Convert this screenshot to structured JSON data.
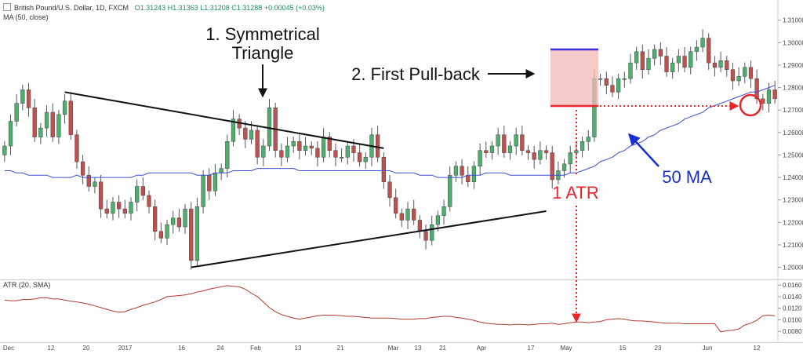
{
  "header": {
    "symbol_line": "British Pound/U.S. Dollar, 1D, FXCM",
    "open": "O1.31243",
    "high": "H1.31363",
    "low": "L1.31208",
    "close": "C1.31288",
    "change": "+0.00045 (+0.03%)",
    "ma_label": "MA (50, close)",
    "atr_label": "ATR (20, SMA)"
  },
  "annotations": {
    "triangle_line1": "1. Symmetrical",
    "triangle_line2": "Triangle",
    "pullback": "2. First Pull-back",
    "atr": "1 ATR",
    "ma": "50 MA"
  },
  "colors": {
    "up": "#4caf6e",
    "down": "#c0504d",
    "ma": "#3b4fd6",
    "atr": "#b03a2e",
    "annotation_red": "#e8262b",
    "annotation_blue": "#1a2fd0",
    "pullback_zone": "#f4b8b8",
    "pullback_top": "#3a2fd6"
  },
  "chart_data": [
    {
      "type": "candlestick",
      "title": "British Pound/U.S. Dollar, 1D, FXCM",
      "x_tick_labels": [
        "Dec",
        "12",
        "20",
        "2017",
        "16",
        "24",
        "Feb",
        "13",
        "21",
        "Mar",
        "13",
        "21",
        "Apr",
        "17",
        "May",
        "15",
        "23",
        "Jun",
        "12"
      ],
      "y_tick_labels": [
        "1.20000",
        "1.21000",
        "1.22000",
        "1.23000",
        "1.24000",
        "1.25000",
        "1.26000",
        "1.27000",
        "1.28000",
        "1.29000",
        "1.30000",
        "1.31000"
      ],
      "ylim": [
        1.196,
        1.312
      ],
      "price_close": [
        1.254,
        1.265,
        1.273,
        1.279,
        1.271,
        1.258,
        1.262,
        1.269,
        1.258,
        1.268,
        1.274,
        1.259,
        1.247,
        1.241,
        1.236,
        1.238,
        1.226,
        1.224,
        1.229,
        1.226,
        1.224,
        1.229,
        1.236,
        1.232,
        1.227,
        1.216,
        1.213,
        1.219,
        1.222,
        1.218,
        1.226,
        1.203,
        1.227,
        1.241,
        1.234,
        1.242,
        1.244,
        1.256,
        1.266,
        1.262,
        1.257,
        1.261,
        1.249,
        1.254,
        1.271,
        1.252,
        1.249,
        1.254,
        1.256,
        1.252,
        1.254,
        1.253,
        1.249,
        1.258,
        1.252,
        1.249,
        1.249,
        1.254,
        1.251,
        1.247,
        1.249,
        1.259,
        1.249,
        1.238,
        1.231,
        1.224,
        1.221,
        1.226,
        1.221,
        1.216,
        1.212,
        1.219,
        1.223,
        1.227,
        1.241,
        1.245,
        1.241,
        1.238,
        1.245,
        1.252,
        1.251,
        1.254,
        1.259,
        1.251,
        1.254,
        1.259,
        1.252,
        1.251,
        1.248,
        1.252,
        1.251,
        1.239,
        1.243,
        1.246,
        1.251,
        1.252,
        1.256,
        1.258,
        1.284,
        1.284,
        1.281,
        1.278,
        1.284,
        1.284,
        1.291,
        1.296,
        1.288,
        1.293,
        1.297,
        1.294,
        1.287,
        1.291,
        1.294,
        1.289,
        1.296,
        1.298,
        1.302,
        1.291,
        1.289,
        1.292,
        1.288,
        1.283,
        1.285,
        1.289,
        1.284,
        1.275,
        1.273,
        1.279,
        1.275
      ],
      "ma50": [
        1.243,
        1.243,
        1.242,
        1.242,
        1.241,
        1.241,
        1.241,
        1.241,
        1.24,
        1.24,
        1.24,
        1.24,
        1.241,
        1.24,
        1.24,
        1.24,
        1.24,
        1.24,
        1.24,
        1.24,
        1.24,
        1.24,
        1.241,
        1.241,
        1.242,
        1.242,
        1.242,
        1.242,
        1.242,
        1.242,
        1.242,
        1.242,
        1.241,
        1.241,
        1.241,
        1.242,
        1.242,
        1.242,
        1.243,
        1.243,
        1.243,
        1.243,
        1.244,
        1.244,
        1.244,
        1.244,
        1.244,
        1.244,
        1.244,
        1.243,
        1.243,
        1.243,
        1.243,
        1.243,
        1.243,
        1.243,
        1.243,
        1.243,
        1.243,
        1.243,
        1.243,
        1.243,
        1.243,
        1.243,
        1.243,
        1.242,
        1.242,
        1.242,
        1.242,
        1.241,
        1.241,
        1.241,
        1.24,
        1.24,
        1.24,
        1.24,
        1.24,
        1.241,
        1.241,
        1.241,
        1.242,
        1.242,
        1.242,
        1.242,
        1.241,
        1.241,
        1.241,
        1.241,
        1.241,
        1.241,
        1.241,
        1.241,
        1.241,
        1.241,
        1.242,
        1.242,
        1.243,
        1.244,
        1.245,
        1.247,
        1.248,
        1.249,
        1.251,
        1.252,
        1.254,
        1.255,
        1.256,
        1.258,
        1.259,
        1.261,
        1.262,
        1.263,
        1.264,
        1.266,
        1.267,
        1.268,
        1.269,
        1.271,
        1.272,
        1.273,
        1.274,
        1.275,
        1.276,
        1.277,
        1.278,
        1.278,
        1.279,
        1.28,
        1.281
      ],
      "drawings": [
        {
          "kind": "trendline",
          "from": [
            10,
            1.278
          ],
          "to": [
            63,
            1.253
          ]
        },
        {
          "kind": "trendline",
          "from": [
            31,
            1.2
          ],
          "to": [
            90,
            1.225
          ]
        }
      ]
    },
    {
      "type": "line",
      "title": "ATR (20, SMA)",
      "y_tick_labels": [
        "0.0080",
        "0.0100",
        "0.0120",
        "0.0140",
        "0.0160"
      ],
      "ylim": [
        0.0072,
        0.0163
      ],
      "atr": [
        0.0134,
        0.0133,
        0.0133,
        0.0135,
        0.0135,
        0.0136,
        0.0138,
        0.0138,
        0.0136,
        0.0136,
        0.0134,
        0.0132,
        0.0131,
        0.0129,
        0.0127,
        0.0124,
        0.0121,
        0.0118,
        0.0115,
        0.0113,
        0.0114,
        0.0118,
        0.0121,
        0.0125,
        0.0128,
        0.0131,
        0.0135,
        0.014,
        0.0141,
        0.0142,
        0.0143,
        0.0145,
        0.0148,
        0.015,
        0.0153,
        0.0155,
        0.0157,
        0.0159,
        0.0158,
        0.0157,
        0.0153,
        0.0146,
        0.014,
        0.0131,
        0.0121,
        0.0114,
        0.0109,
        0.0106,
        0.0103,
        0.0101,
        0.0103,
        0.0105,
        0.0107,
        0.0108,
        0.0108,
        0.0108,
        0.0107,
        0.0106,
        0.0106,
        0.0105,
        0.0104,
        0.0103,
        0.0103,
        0.0103,
        0.0103,
        0.0102,
        0.0101,
        0.0101,
        0.0101,
        0.0102,
        0.0102,
        0.0104,
        0.0105,
        0.0106,
        0.0106,
        0.0104,
        0.0103,
        0.0101,
        0.0099,
        0.0096,
        0.0094,
        0.0093,
        0.0092,
        0.0092,
        0.0091,
        0.0092,
        0.0092,
        0.0091,
        0.0092,
        0.0093,
        0.0093,
        0.0094,
        0.0092,
        0.0093,
        0.0095,
        0.0096,
        0.0096,
        0.0095,
        0.0096,
        0.0097,
        0.01,
        0.0101,
        0.0102,
        0.0101,
        0.0099,
        0.0098,
        0.0098,
        0.0097,
        0.0096,
        0.0095,
        0.0094,
        0.0094,
        0.0094,
        0.0093,
        0.0093,
        0.0093,
        0.0093,
        0.0093,
        0.0093,
        0.0079,
        0.0081,
        0.0082,
        0.0084,
        0.0091,
        0.0094,
        0.0099,
        0.0107,
        0.0108,
        0.0107
      ]
    }
  ]
}
